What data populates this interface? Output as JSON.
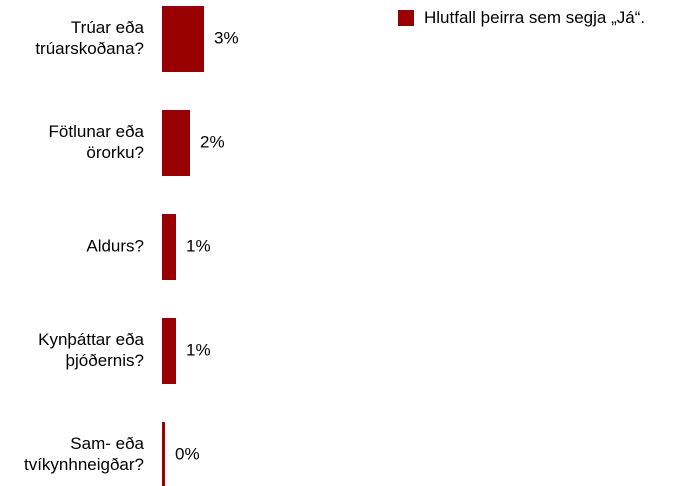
{
  "chart_data": {
    "type": "bar",
    "orientation": "horizontal",
    "categories": [
      [
        "Trúar eða",
        "trúarskoðana?"
      ],
      [
        "Fötlunar eða",
        "örorku?"
      ],
      [
        "Aldurs?"
      ],
      [
        "Kynþáttar eða",
        "þjóðernis?"
      ],
      [
        "Sam- eða",
        "tvíkynhneigðar?"
      ]
    ],
    "values": [
      3,
      2,
      1,
      1,
      0
    ],
    "value_labels": [
      "3%",
      "2%",
      "1%",
      "1%",
      "0%"
    ],
    "series": [
      {
        "name": "Hlutfall þeirra sem segja „Já“.",
        "values": [
          3,
          2,
          1,
          1,
          0
        ]
      }
    ],
    "xlim": [
      0,
      10
    ],
    "grid": false,
    "legend_position": "top-right",
    "bar_color": "#990000"
  },
  "legend": {
    "label": "Hlutfall þeirra sem segja „Já“.",
    "color": "#990000"
  }
}
